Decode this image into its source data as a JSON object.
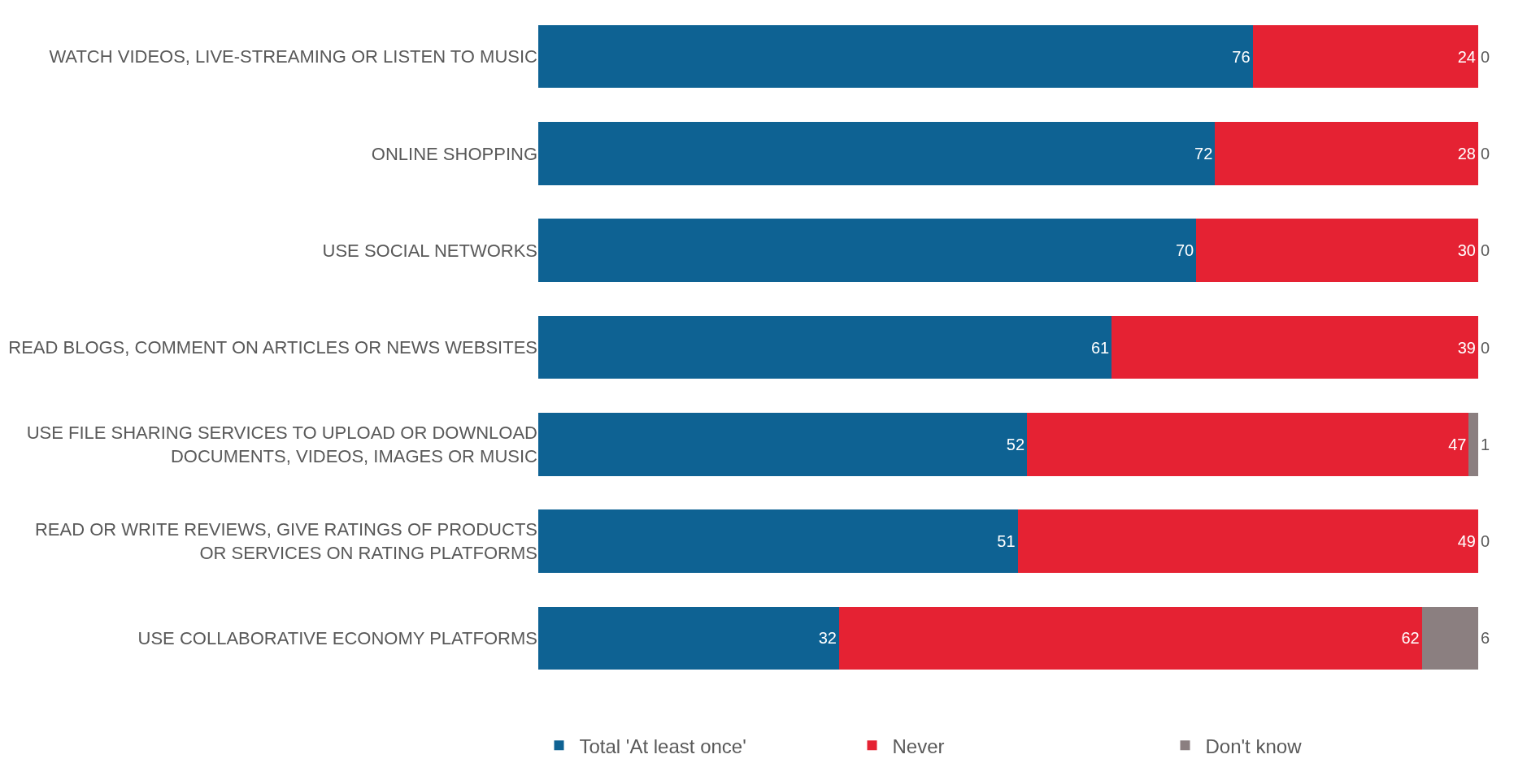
{
  "chart_data": {
    "type": "bar",
    "orientation": "horizontal",
    "stacked": true,
    "data_labels": true,
    "tick_labels": "y",
    "legend": "bottom",
    "xlim": [
      0,
      100
    ],
    "categories": [
      "WATCH VIDEOS, LIVE-STREAMING OR LISTEN TO MUSIC",
      "ONLINE SHOPPING",
      "USE SOCIAL NETWORKS",
      "READ BLOGS, COMMENT ON ARTICLES OR NEWS WEBSITES",
      "USE FILE SHARING SERVICES TO UPLOAD OR DOWNLOAD DOCUMENTS, VIDEOS, IMAGES OR MUSIC",
      "READ OR WRITE REVIEWS, GIVE RATINGS OF PRODUCTS OR SERVICES ON RATING PLATFORMS",
      "USE COLLABORATIVE ECONOMY PLATFORMS"
    ],
    "series": [
      {
        "name": "Total 'At least once'",
        "color": "#0e6293",
        "values": [
          76,
          72,
          70,
          61,
          52,
          51,
          32
        ]
      },
      {
        "name": "Never",
        "color": "#e52233",
        "values": [
          24,
          28,
          30,
          39,
          47,
          49,
          62
        ]
      },
      {
        "name": "Don't know",
        "color": "#8b7f80",
        "values": [
          0,
          0,
          0,
          0,
          1,
          0,
          6
        ]
      }
    ]
  }
}
